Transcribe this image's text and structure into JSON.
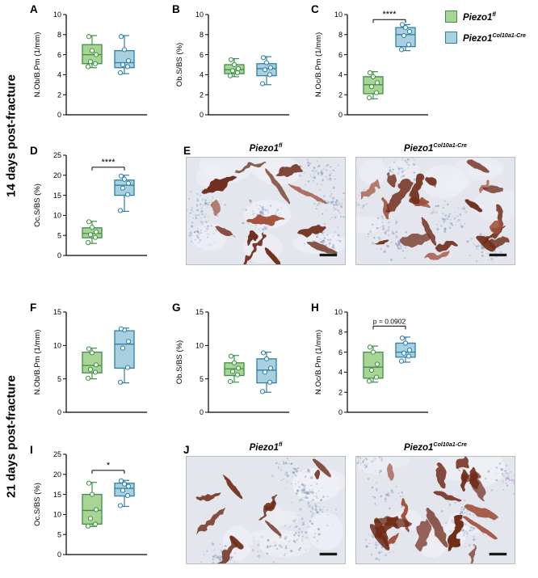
{
  "row_labels": [
    "14 days post-fracture",
    "21 days post-fracture"
  ],
  "panel_letters": [
    "A",
    "B",
    "C",
    "D",
    "E",
    "F",
    "G",
    "H",
    "I",
    "J"
  ],
  "legend": {
    "items": [
      {
        "base": "Piezo1",
        "sup": "fl",
        "fill": "#a8d494",
        "stroke": "#3f8f4a"
      },
      {
        "base": "Piezo1",
        "sup": "Col10a1-Cre",
        "fill": "#a9d0e0",
        "stroke": "#2d7fa3"
      }
    ]
  },
  "histology": {
    "palette": {
      "bg": "#e4e6ee",
      "cell": "#8fa0c0",
      "stain": "#6f2b19",
      "stain2": "#a0503a",
      "pale": "#eef0f5"
    },
    "e": {
      "labels": [
        {
          "base": "Piezo1",
          "sup": "fl"
        },
        {
          "base": "Piezo1",
          "sup": "Col10a1-Cre"
        }
      ],
      "images": [
        {
          "seed": 11,
          "density": 1.0
        },
        {
          "seed": 22,
          "density": 1.7
        }
      ]
    },
    "j": {
      "labels": [
        {
          "base": "Piezo1",
          "sup": "fl"
        },
        {
          "base": "Piezo1",
          "sup": "Col10a1-Cre"
        }
      ],
      "images": [
        {
          "seed": 33,
          "density": 0.8
        },
        {
          "seed": 47,
          "density": 1.5
        }
      ]
    }
  },
  "chart_data": [
    {
      "panel": "A",
      "type": "box",
      "title": "",
      "ylabel": "N.Ob/B.Pm (1/mm)",
      "ylim": [
        0,
        10
      ],
      "yticks": [
        0,
        2,
        4,
        6,
        8,
        10
      ],
      "categories": [
        "Piezo1fl",
        "Piezo1Col10a1-Cre"
      ],
      "series": [
        {
          "name": "Piezo1fl",
          "box": {
            "min": 4.7,
            "q1": 5.1,
            "median": 6.0,
            "q3": 7.0,
            "max": 7.9
          },
          "points": [
            4.8,
            5.1,
            5.3,
            6.0,
            6.4,
            7.8
          ]
        },
        {
          "name": "Piezo1Col10a1-Cre",
          "box": {
            "min": 4.1,
            "q1": 4.7,
            "median": 5.2,
            "q3": 6.4,
            "max": 7.9
          },
          "points": [
            4.2,
            4.8,
            5.0,
            5.4,
            6.5,
            7.8
          ]
        }
      ],
      "significance": null
    },
    {
      "panel": "B",
      "type": "box",
      "title": "",
      "ylabel": "Ob.S/BS (%)",
      "ylim": [
        0,
        10
      ],
      "yticks": [
        0,
        2,
        4,
        6,
        8,
        10
      ],
      "categories": [
        "Piezo1fl",
        "Piezo1Col10a1-Cre"
      ],
      "series": [
        {
          "name": "Piezo1fl",
          "box": {
            "min": 3.8,
            "q1": 4.1,
            "median": 4.5,
            "q3": 5.0,
            "max": 5.6
          },
          "points": [
            3.9,
            4.2,
            4.4,
            4.6,
            5.0,
            5.5
          ]
        },
        {
          "name": "Piezo1Col10a1-Cre",
          "box": {
            "min": 3.0,
            "q1": 3.9,
            "median": 4.6,
            "q3": 5.1,
            "max": 5.8
          },
          "points": [
            3.1,
            4.0,
            4.5,
            4.7,
            5.2,
            5.7
          ]
        }
      ],
      "significance": null
    },
    {
      "panel": "C",
      "type": "box",
      "title": "",
      "ylabel": "N.Oc/B.Pm (1/mm)",
      "ylim": [
        0,
        10
      ],
      "yticks": [
        0,
        2,
        4,
        6,
        8,
        10
      ],
      "categories": [
        "Piezo1fl",
        "Piezo1Col10a1-Cre"
      ],
      "series": [
        {
          "name": "Piezo1fl",
          "box": {
            "min": 1.6,
            "q1": 2.1,
            "median": 3.0,
            "q3": 3.8,
            "max": 4.3
          },
          "points": [
            1.7,
            2.2,
            2.8,
            3.2,
            3.8,
            4.2
          ]
        },
        {
          "name": "Piezo1Col10a1-Cre",
          "box": {
            "min": 6.4,
            "q1": 6.8,
            "median": 8.0,
            "q3": 8.7,
            "max": 9.0
          },
          "points": [
            6.5,
            7.0,
            7.9,
            8.3,
            8.7,
            9.0
          ]
        }
      ],
      "significance": {
        "text": "****",
        "y": 9.5
      }
    },
    {
      "panel": "D",
      "type": "box",
      "title": "",
      "ylabel": "Oc.S/BS (%)",
      "ylim": [
        0,
        25
      ],
      "yticks": [
        0,
        5,
        10,
        15,
        20,
        25
      ],
      "categories": [
        "Piezo1fl",
        "Piezo1Col10a1-Cre"
      ],
      "series": [
        {
          "name": "Piezo1fl",
          "box": {
            "min": 3.0,
            "q1": 4.4,
            "median": 5.5,
            "q3": 6.9,
            "max": 8.5
          },
          "points": [
            3.2,
            4.5,
            5.2,
            5.9,
            7.0,
            8.4
          ]
        },
        {
          "name": "Piezo1Col10a1-Cre",
          "box": {
            "min": 11.0,
            "q1": 15.0,
            "median": 17.5,
            "q3": 18.8,
            "max": 20.0
          },
          "points": [
            11.2,
            15.2,
            16.8,
            18.0,
            19.0,
            19.8
          ]
        }
      ],
      "significance": {
        "text": "****",
        "y": 22
      }
    },
    {
      "panel": "F",
      "type": "box",
      "title": "",
      "ylabel": "N.Ob/B.Pm (1/mm)",
      "ylim": [
        0,
        15
      ],
      "yticks": [
        0,
        5,
        10,
        15
      ],
      "categories": [
        "Piezo1fl",
        "Piezo1Col10a1-Cre"
      ],
      "series": [
        {
          "name": "Piezo1fl",
          "box": {
            "min": 5.0,
            "q1": 5.9,
            "median": 7.0,
            "q3": 9.0,
            "max": 9.6
          },
          "points": [
            5.1,
            6.0,
            6.4,
            7.1,
            8.9,
            9.5
          ]
        },
        {
          "name": "Piezo1Col10a1-Cre",
          "box": {
            "min": 4.4,
            "q1": 6.6,
            "median": 10.2,
            "q3": 12.2,
            "max": 12.6
          },
          "points": [
            4.5,
            6.7,
            9.6,
            10.6,
            12.3,
            12.5
          ]
        }
      ],
      "significance": null
    },
    {
      "panel": "G",
      "type": "box",
      "title": "",
      "ylabel": "Ob.S/BS (%)",
      "ylim": [
        0,
        15
      ],
      "yticks": [
        0,
        5,
        10,
        15
      ],
      "categories": [
        "Piezo1fl",
        "Piezo1Col10a1-Cre"
      ],
      "series": [
        {
          "name": "Piezo1fl",
          "box": {
            "min": 4.5,
            "q1": 5.5,
            "median": 6.5,
            "q3": 7.4,
            "max": 8.5
          },
          "points": [
            4.6,
            5.6,
            6.1,
            6.6,
            7.4,
            8.4
          ]
        },
        {
          "name": "Piezo1Col10a1-Cre",
          "box": {
            "min": 3.0,
            "q1": 4.4,
            "median": 6.3,
            "q3": 8.0,
            "max": 9.0
          },
          "points": [
            3.1,
            4.5,
            6.0,
            6.6,
            8.0,
            8.9
          ]
        }
      ],
      "significance": null
    },
    {
      "panel": "H",
      "type": "box",
      "title": "",
      "ylabel": "N.Oc/B.Pm (1/mm)",
      "ylim": [
        0,
        10
      ],
      "yticks": [
        0,
        2,
        4,
        6,
        8,
        10
      ],
      "categories": [
        "Piezo1fl",
        "Piezo1Col10a1-Cre"
      ],
      "series": [
        {
          "name": "Piezo1fl",
          "box": {
            "min": 3.0,
            "q1": 3.4,
            "median": 4.5,
            "q3": 6.0,
            "max": 6.6
          },
          "points": [
            3.1,
            3.5,
            4.2,
            4.8,
            6.0,
            6.5
          ]
        },
        {
          "name": "Piezo1Col10a1-Cre",
          "box": {
            "min": 5.0,
            "q1": 5.5,
            "median": 6.0,
            "q3": 6.9,
            "max": 7.5
          },
          "points": [
            5.1,
            5.6,
            5.9,
            6.2,
            6.9,
            7.4
          ]
        }
      ],
      "significance": {
        "text": "p = 0.0902",
        "y": 8.6
      }
    },
    {
      "panel": "I",
      "type": "box",
      "title": "",
      "ylabel": "Oc.S/BS (%)",
      "ylim": [
        0,
        25
      ],
      "yticks": [
        0,
        5,
        10,
        15,
        20,
        25
      ],
      "categories": [
        "Piezo1fl",
        "Piezo1Col10a1-Cre"
      ],
      "series": [
        {
          "name": "Piezo1fl",
          "box": {
            "min": 7.0,
            "q1": 7.6,
            "median": 11.0,
            "q3": 15.0,
            "max": 18.0
          },
          "points": [
            7.1,
            7.6,
            9.0,
            11.2,
            15.0,
            17.8
          ]
        },
        {
          "name": "Piezo1Col10a1-Cre",
          "box": {
            "min": 12.0,
            "q1": 14.6,
            "median": 16.5,
            "q3": 17.8,
            "max": 18.5
          },
          "points": [
            12.2,
            14.7,
            16.0,
            17.0,
            17.6,
            18.4
          ]
        }
      ],
      "significance": {
        "text": "*",
        "y": 21
      }
    }
  ]
}
